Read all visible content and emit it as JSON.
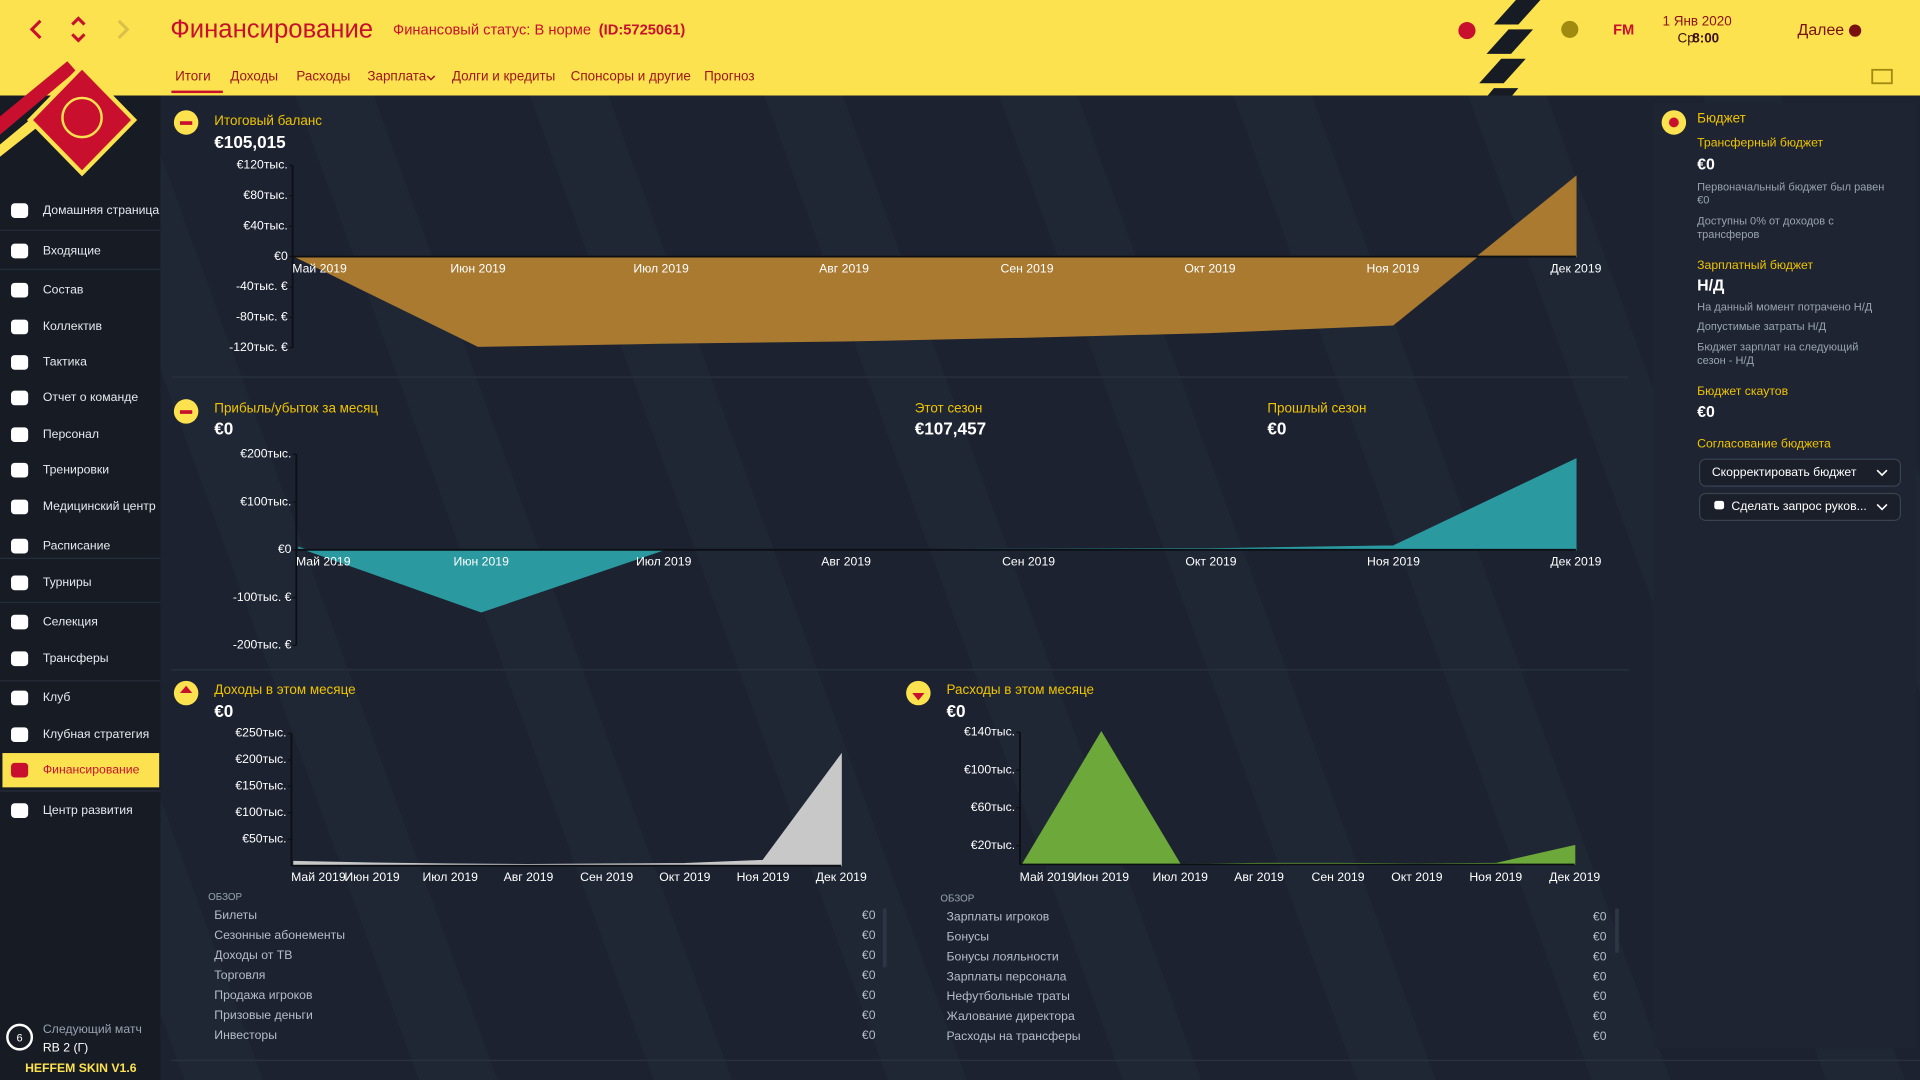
{
  "header": {
    "title": "Финансирование",
    "status": "Финансовый статус: В норме",
    "status_id": "(ID:5725061)",
    "logo": "FM",
    "date": "1 Янв 2020",
    "day": "Ср",
    "time": "8:00",
    "next": "Далее"
  },
  "tabs": [
    "Итоги",
    "Доходы",
    "Расходы",
    "Зарплата",
    "Долги и кредиты",
    "Спонсоры и другие",
    "Прогноз"
  ],
  "sidebar": {
    "items": [
      "Домашняя страница",
      "Входящие",
      "Состав",
      "Коллектив",
      "Тактика",
      "Отчет о команде",
      "Персонал",
      "Тренировки",
      "Медицинский центр",
      "Расписание",
      "Турниры",
      "Селекция",
      "Трансферы",
      "Клуб",
      "Клубная стратегия",
      "Финансирование",
      "Центр развития"
    ],
    "next_match_label": "Следующий матч",
    "next_match": "RB 2 (Г)",
    "next_match_days": "6",
    "skin": "HEFFEM SKIN V1.6"
  },
  "panels": {
    "balance": {
      "title": "Итоговый баланс",
      "value": "€105,015"
    },
    "profit": {
      "title": "Прибыль/убыток за месяц",
      "value": "€0",
      "this_season_label": "Этот сезон",
      "this_season": "€107,457",
      "last_season_label": "Прошлый сезон",
      "last_season": "€0"
    },
    "income": {
      "title": "Доходы в этом месяце",
      "value": "€0",
      "overview": "ОБЗОР",
      "rows": [
        [
          "Билеты",
          "€0"
        ],
        [
          "Сезонные абонементы",
          "€0"
        ],
        [
          "Доходы от ТВ",
          "€0"
        ],
        [
          "Торговля",
          "€0"
        ],
        [
          "Продажа игроков",
          "€0"
        ],
        [
          "Призовые деньги",
          "€0"
        ],
        [
          "Инвесторы",
          "€0"
        ]
      ]
    },
    "expenses": {
      "title": "Расходы в этом месяце",
      "value": "€0",
      "overview": "ОБЗОР",
      "rows": [
        [
          "Зарплаты игроков",
          "€0"
        ],
        [
          "Бонусы",
          "€0"
        ],
        [
          "Бонусы лояльности",
          "€0"
        ],
        [
          "Зарплаты персонала",
          "€0"
        ],
        [
          "Нефутбольные траты",
          "€0"
        ],
        [
          "Жалование директора",
          "€0"
        ],
        [
          "Расходы на трансферы",
          "€0"
        ]
      ]
    }
  },
  "budget": {
    "title": "Бюджет",
    "transfer_title": "Трансферный бюджет",
    "transfer_value": "€0",
    "transfer_notes": [
      [
        "Первоначальный бюджет был равен",
        "€0"
      ],
      [
        "Доступны 0% от доходов с",
        "трансферов"
      ]
    ],
    "wage_title": "Зарплатный бюджет",
    "wage_value": "Н/Д",
    "wage_notes": [
      [
        "На данный момент потрачено Н/Д"
      ],
      [
        "Допустимые затраты Н/Д"
      ],
      [
        "Бюджет зарплат на следующий",
        "сезон - Н/Д"
      ]
    ],
    "scout_title": "Бюджет скаутов",
    "scout_value": "€0",
    "negotiation_title": "Согласование бюджета",
    "buttons": [
      "Скорректировать бюджет",
      "Сделать запрос руков..."
    ]
  },
  "chart_data": [
    {
      "type": "area",
      "color": "#a97a30",
      "categories": [
        "Май 2019",
        "Июн 2019",
        "Июл 2019",
        "Авг 2019",
        "Сен 2019",
        "Окт 2019",
        "Ноя 2019",
        "Дек 2019"
      ],
      "values": [
        0,
        -118000,
        -114000,
        -111000,
        -106000,
        -100000,
        -90000,
        105000
      ],
      "ylim": [
        -120000,
        120000
      ],
      "yticks": [
        {
          "value": -120000,
          "label": "-120тыс. €"
        },
        {
          "value": -80000,
          "label": "-80тыс. €"
        },
        {
          "value": -40000,
          "label": "-40тыс. €"
        },
        {
          "value": 0,
          "label": "€0"
        },
        {
          "value": 40000,
          "label": "€40тыс."
        },
        {
          "value": 80000,
          "label": "€80тыс."
        },
        {
          "value": 120000,
          "label": "€120тыс."
        }
      ]
    },
    {
      "type": "area",
      "color": "#2a9aa0",
      "categories": [
        "Май 2019",
        "Июн 2019",
        "Июл 2019",
        "Авг 2019",
        "Сен 2019",
        "Окт 2019",
        "Ноя 2019",
        "Дек 2019"
      ],
      "values": [
        5000,
        -130000,
        0,
        0,
        1000,
        2000,
        8000,
        190000
      ],
      "ylim": [
        -200000,
        200000
      ],
      "yticks": [
        {
          "value": -200000,
          "label": "-200тыс. €"
        },
        {
          "value": -100000,
          "label": "-100тыс. €"
        },
        {
          "value": 0,
          "label": "€0"
        },
        {
          "value": 100000,
          "label": "€100тыс."
        },
        {
          "value": 200000,
          "label": "€200тыс."
        }
      ]
    },
    {
      "type": "area",
      "color": "#c8c8c8",
      "categories": [
        "Май 2019",
        "Июн 2019",
        "Июл 2019",
        "Авг 2019",
        "Сен 2019",
        "Окт 2019",
        "Ноя 2019",
        "Дек 2019"
      ],
      "values": [
        8000,
        5000,
        3000,
        2000,
        3000,
        4000,
        10000,
        210000
      ],
      "ylim": [
        0,
        250000
      ],
      "yticks": [
        {
          "value": 50000,
          "label": "€50тыс."
        },
        {
          "value": 100000,
          "label": "€100тыс."
        },
        {
          "value": 150000,
          "label": "€150тыс."
        },
        {
          "value": 200000,
          "label": "€200тыс."
        },
        {
          "value": 250000,
          "label": "€250тыс."
        }
      ]
    },
    {
      "type": "area",
      "color": "#6ca83a",
      "categories": [
        "Май 2019",
        "Июн 2019",
        "Июл 2019",
        "Авг 2019",
        "Сен 2019",
        "Окт 2019",
        "Ноя 2019",
        "Дек 2019"
      ],
      "values": [
        0,
        140000,
        0,
        1000,
        1000,
        500,
        1000,
        20000
      ],
      "ylim": [
        0,
        140000
      ],
      "yticks": [
        {
          "value": 20000,
          "label": "€20тыс."
        },
        {
          "value": 60000,
          "label": "€60тыс."
        },
        {
          "value": 100000,
          "label": "€100тыс."
        },
        {
          "value": 140000,
          "label": "€140тыс."
        }
      ]
    }
  ]
}
